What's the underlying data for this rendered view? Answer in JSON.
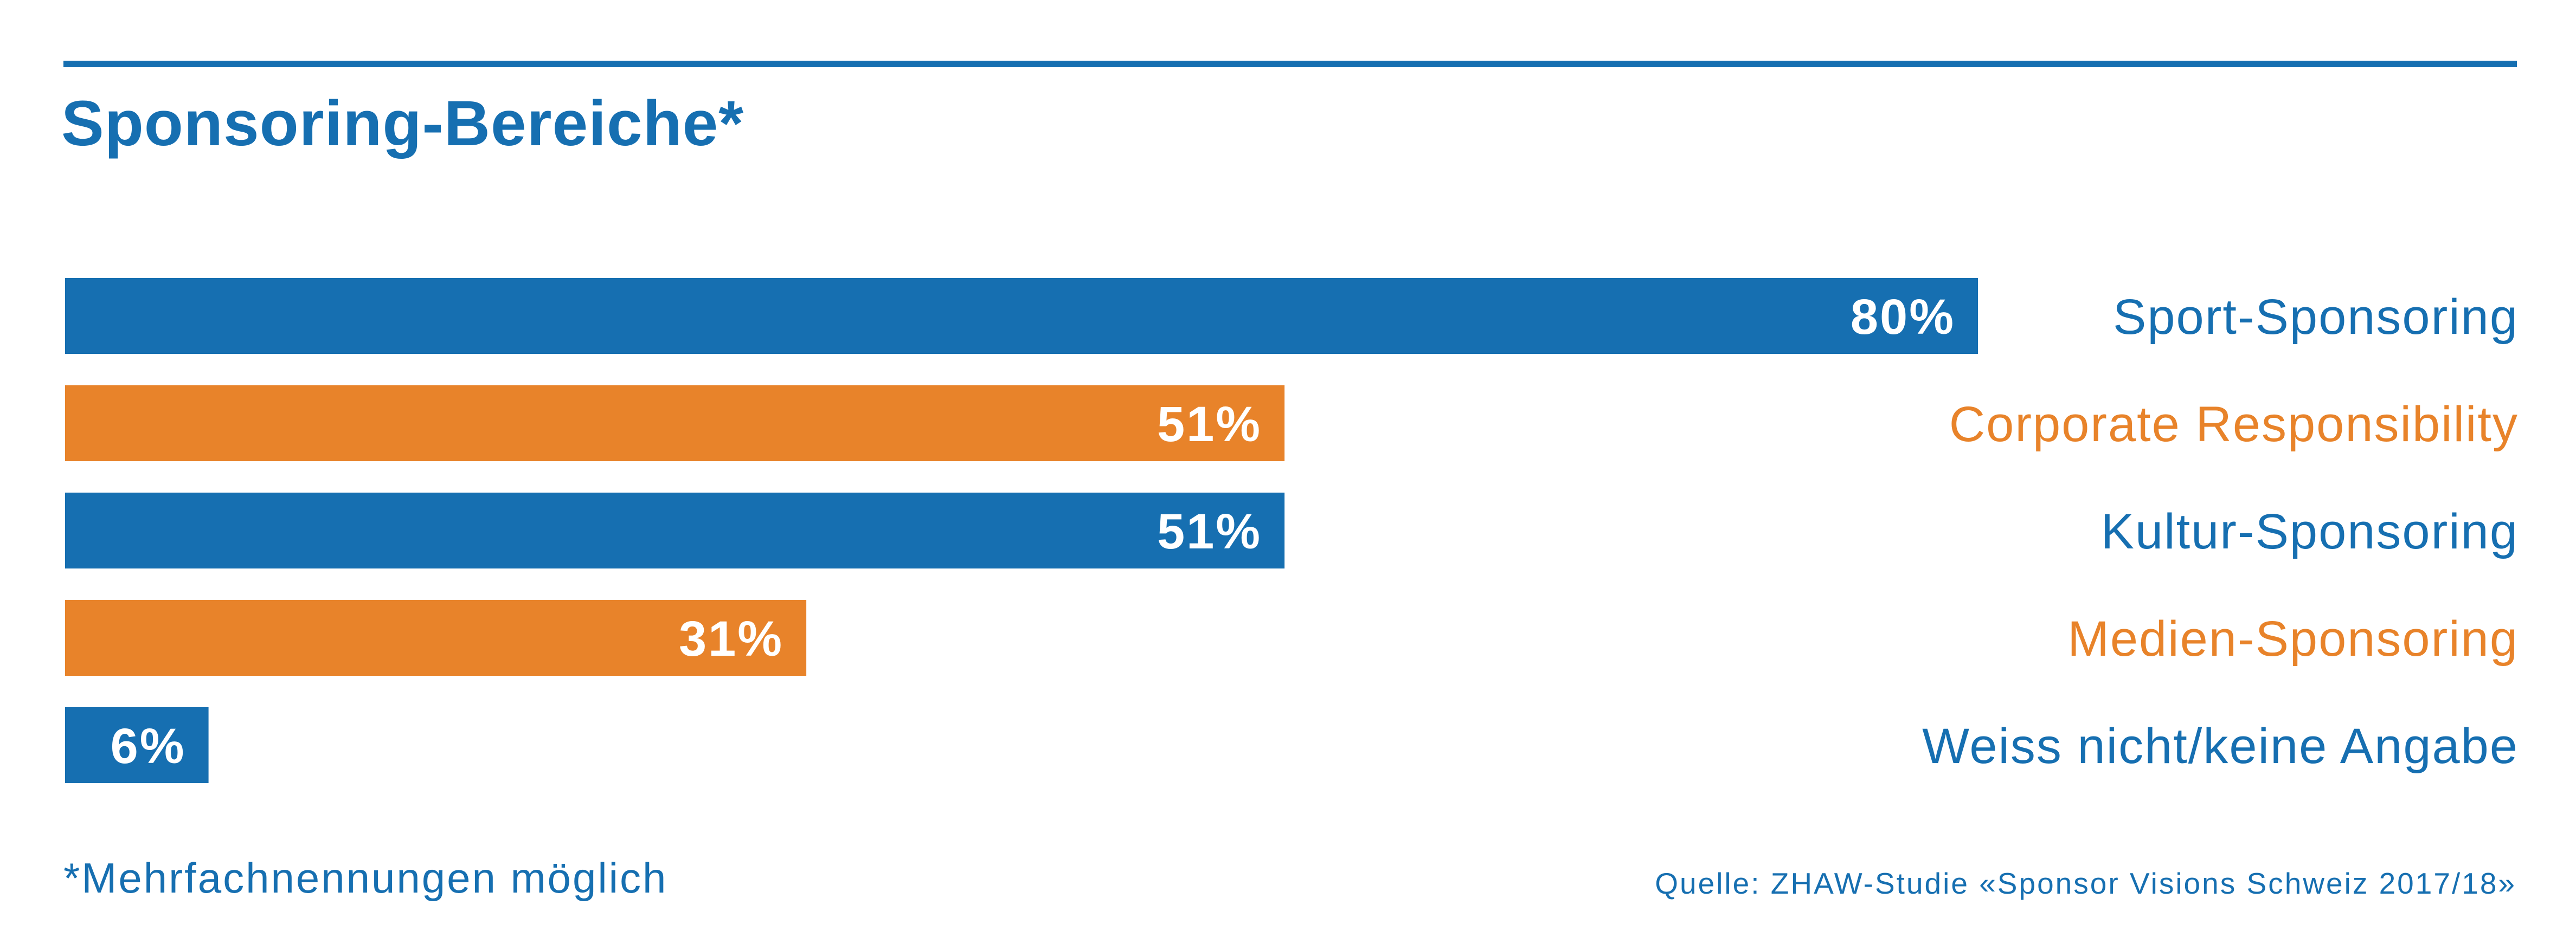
{
  "colors": {
    "blue": "#166fb1",
    "orange": "#e8832a"
  },
  "chart_data": {
    "type": "bar",
    "orientation": "horizontal",
    "title": "Sponsoring-Bereiche*",
    "categories": [
      "Sport-Sponsoring",
      "Corporate Responsibility",
      "Kultur-Sponsoring",
      "Medien-Sponsoring",
      "Weiss nicht/keine Angabe"
    ],
    "values": [
      80,
      51,
      51,
      31,
      6
    ],
    "value_labels": [
      "80%",
      "51%",
      "51%",
      "31%",
      "6%"
    ],
    "bar_colors": [
      "#166fb1",
      "#e8832a",
      "#166fb1",
      "#e8832a",
      "#166fb1"
    ],
    "unit": "%",
    "xlim": [
      0,
      100
    ],
    "grid": false,
    "legend": "none"
  },
  "footnote": "*Mehrfachnennungen möglich",
  "source": "Quelle: ZHAW-Studie «Sponsor Visions Schweiz 2017/18»"
}
